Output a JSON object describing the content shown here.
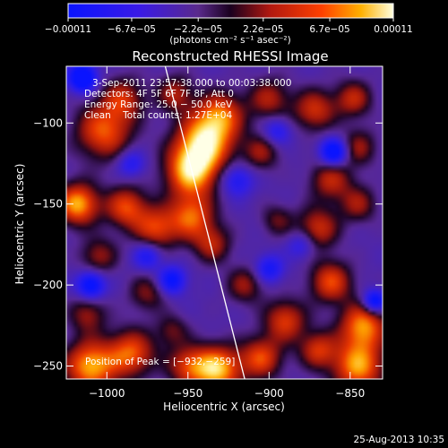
{
  "chart_data": {
    "type": "heatmap",
    "title": "Reconstructed RHESSI Image",
    "xlabel": "Heliocentric X (arcsec)",
    "ylabel": "Heliocentric Y (arcsec)",
    "xlim": [
      -1025,
      -830
    ],
    "ylim": [
      -258,
      -65
    ],
    "x_ticks": [
      {
        "value": -1000,
        "label": "−1000"
      },
      {
        "value": -950,
        "label": "−950"
      },
      {
        "value": -900,
        "label": "−900"
      },
      {
        "value": -850,
        "label": "−850"
      }
    ],
    "y_ticks": [
      {
        "value": -100,
        "label": "−100"
      },
      {
        "value": -150,
        "label": "−150"
      },
      {
        "value": -200,
        "label": "−200"
      },
      {
        "value": -250,
        "label": "−250"
      }
    ],
    "colorbar": {
      "min": -0.00011,
      "max": 0.00011,
      "ticks": [
        {
          "value": -0.00011,
          "label": "−0.00011"
        },
        {
          "value": -6.7e-05,
          "label": "−6.7e−05"
        },
        {
          "value": -2.2e-05,
          "label": "−2.2e−05"
        },
        {
          "value": 2.2e-05,
          "label": "2.2e−05"
        },
        {
          "value": 6.7e-05,
          "label": "6.7e−05"
        },
        {
          "value": 0.00011,
          "label": "0.00011"
        }
      ],
      "unit_label": "(photons cm⁻² s⁻¹ asec⁻²)"
    },
    "annotations": {
      "time": "3‐Sep‐2011 23:57:38.000 to 00:03:38.000",
      "detectors": "Detectors: 4F 5F 6F 7F 8F, Att 0",
      "energy": "Energy Range: 25.0 − 50.0 keV",
      "method": "Clean    Total counts: 1.27E+04",
      "peak": "Position of Peak = [−932,−259]"
    },
    "peak": {
      "x": -932,
      "y": -259
    },
    "limb_line": [
      {
        "x": -964,
        "y": -65
      },
      {
        "x": -915,
        "y": -258
      }
    ],
    "sources": [
      {
        "x": -940,
        "y": -112,
        "amp": 1.0,
        "r": 12
      },
      {
        "x": -948,
        "y": -130,
        "amp": 0.95,
        "r": 11
      },
      {
        "x": -930,
        "y": -95,
        "amp": 0.7,
        "r": 10
      },
      {
        "x": -1002,
        "y": -105,
        "amp": 0.75,
        "r": 12
      },
      {
        "x": -990,
        "y": -85,
        "amp": 0.55,
        "r": 9
      },
      {
        "x": -958,
        "y": -82,
        "amp": 0.5,
        "r": 8
      },
      {
        "x": -900,
        "y": -85,
        "amp": 0.5,
        "r": 9
      },
      {
        "x": -872,
        "y": -92,
        "amp": 0.6,
        "r": 9
      },
      {
        "x": -848,
        "y": -85,
        "amp": 0.55,
        "r": 8
      },
      {
        "x": -845,
        "y": -115,
        "amp": 0.45,
        "r": 8
      },
      {
        "x": -905,
        "y": -118,
        "amp": 0.45,
        "r": 8
      },
      {
        "x": -1018,
        "y": -150,
        "amp": 0.95,
        "r": 9
      },
      {
        "x": -988,
        "y": -152,
        "amp": 0.7,
        "r": 9
      },
      {
        "x": -970,
        "y": -165,
        "amp": 0.65,
        "r": 9
      },
      {
        "x": -948,
        "y": -158,
        "amp": 0.75,
        "r": 10
      },
      {
        "x": -935,
        "y": -175,
        "amp": 0.5,
        "r": 8
      },
      {
        "x": -862,
        "y": -135,
        "amp": 0.55,
        "r": 9
      },
      {
        "x": -870,
        "y": -165,
        "amp": 0.6,
        "r": 9
      },
      {
        "x": -845,
        "y": -150,
        "amp": 0.45,
        "r": 8
      },
      {
        "x": -895,
        "y": -160,
        "amp": 0.35,
        "r": 7
      },
      {
        "x": -1005,
        "y": -182,
        "amp": 0.45,
        "r": 8
      },
      {
        "x": -1012,
        "y": -218,
        "amp": 0.45,
        "r": 8
      },
      {
        "x": -975,
        "y": -205,
        "amp": 0.4,
        "r": 8
      },
      {
        "x": -960,
        "y": -228,
        "amp": 0.35,
        "r": 7
      },
      {
        "x": -915,
        "y": -200,
        "amp": 0.45,
        "r": 8
      },
      {
        "x": -890,
        "y": -222,
        "amp": 0.65,
        "r": 9
      },
      {
        "x": -862,
        "y": -198,
        "amp": 0.7,
        "r": 9
      },
      {
        "x": -842,
        "y": -225,
        "amp": 0.85,
        "r": 10
      },
      {
        "x": -1010,
        "y": -250,
        "amp": 0.95,
        "r": 11
      },
      {
        "x": -985,
        "y": -242,
        "amp": 0.75,
        "r": 10
      },
      {
        "x": -950,
        "y": -250,
        "amp": 0.6,
        "r": 9
      },
      {
        "x": -932,
        "y": -252,
        "amp": 1.0,
        "r": 10
      },
      {
        "x": -905,
        "y": -245,
        "amp": 0.7,
        "r": 9
      },
      {
        "x": -845,
        "y": -250,
        "amp": 0.9,
        "r": 11
      },
      {
        "x": -870,
        "y": -240,
        "amp": 0.6,
        "r": 8
      },
      {
        "x": -1015,
        "y": -72,
        "amp": -1.0,
        "r": 6
      },
      {
        "x": -1010,
        "y": -200,
        "amp": -0.8,
        "r": 6
      },
      {
        "x": -860,
        "y": -118,
        "amp": -0.9,
        "r": 6
      },
      {
        "x": -835,
        "y": -210,
        "amp": -0.85,
        "r": 5
      },
      {
        "x": -960,
        "y": -197,
        "amp": -0.7,
        "r": 6
      },
      {
        "x": -900,
        "y": -190,
        "amp": -0.55,
        "r": 6
      },
      {
        "x": -920,
        "y": -135,
        "amp": -0.5,
        "r": 7
      },
      {
        "x": -985,
        "y": -125,
        "amp": -0.45,
        "r": 6
      },
      {
        "x": -975,
        "y": -182,
        "amp": -0.5,
        "r": 6
      },
      {
        "x": -895,
        "y": -105,
        "amp": -0.45,
        "r": 6
      },
      {
        "x": -880,
        "y": -175,
        "amp": -0.4,
        "r": 6
      }
    ]
  },
  "footer": {
    "date": "25-Aug-2013 10:35"
  }
}
